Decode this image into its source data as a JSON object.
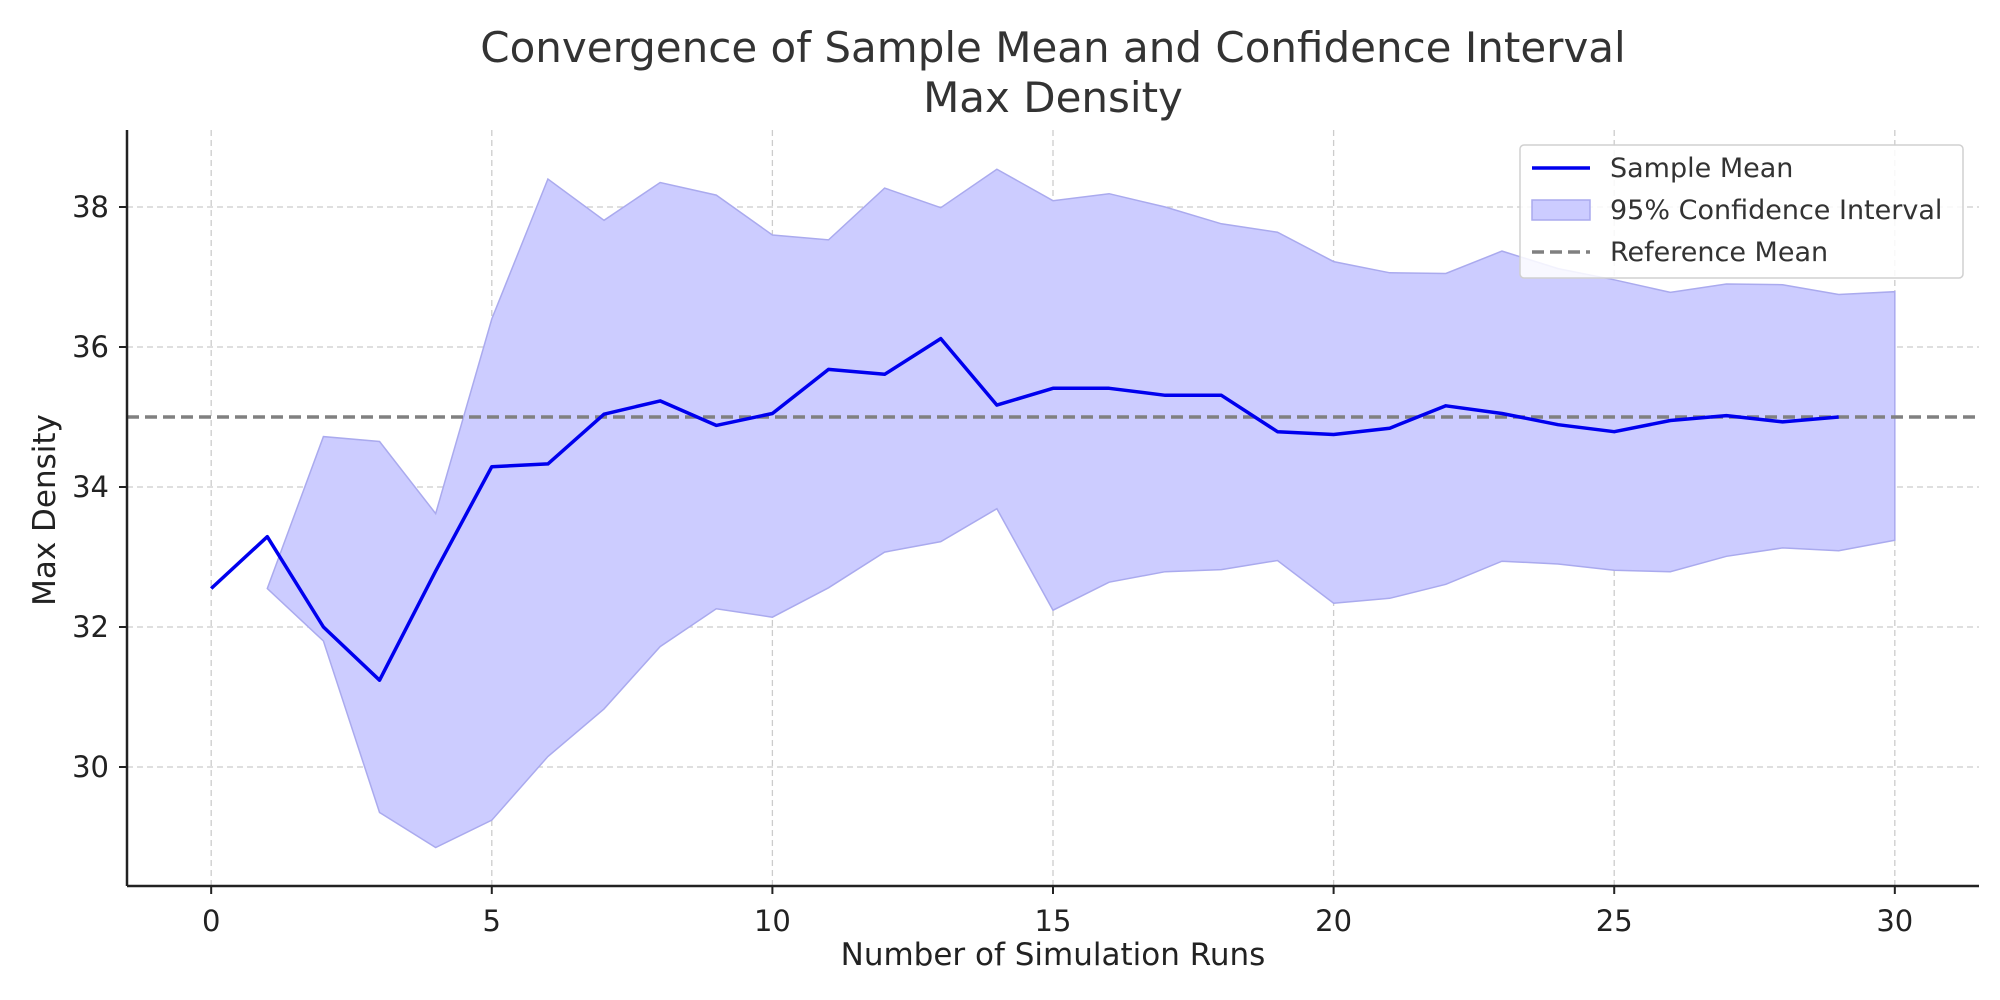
{
  "chart_data": {
    "type": "line",
    "title": "Convergence of Sample Mean and Confidence Interval",
    "subtitle": "Max Density",
    "xlabel": "Number of Simulation Runs",
    "ylabel": "Max Density",
    "xlim": [
      -1.5,
      31.5
    ],
    "ylim": [
      28.3,
      39.1
    ],
    "xticks": [
      0,
      5,
      10,
      15,
      20,
      25,
      30
    ],
    "yticks": [
      30,
      32,
      34,
      36,
      38
    ],
    "grid": true,
    "legend_position": "top-right",
    "colors": {
      "sample_mean": "#0000ee",
      "ci_fill": "#ccccff",
      "ci_edge": "#aaaaee",
      "reference": "#808080",
      "grid": "#cccccc",
      "axis": "#222222"
    },
    "legend": [
      {
        "key": "sample_mean",
        "label": "Sample Mean"
      },
      {
        "key": "ci",
        "label": "95% Confidence Interval"
      },
      {
        "key": "reference",
        "label": "Reference Mean"
      }
    ],
    "series": [
      {
        "name": "Sample Mean",
        "x": [
          0,
          1,
          2,
          3,
          4,
          5,
          6,
          7,
          8,
          9,
          10,
          11,
          12,
          13,
          14,
          15,
          16,
          17,
          18,
          19,
          20,
          21,
          22,
          23,
          24,
          25,
          26,
          27,
          28,
          29
        ],
        "y": [
          32.55,
          33.29,
          32.0,
          31.24,
          32.8,
          34.29,
          34.33,
          35.04,
          35.23,
          34.88,
          35.05,
          35.68,
          35.61,
          36.12,
          35.17,
          35.41,
          35.41,
          35.31,
          35.31,
          34.79,
          34.75,
          34.84,
          35.16,
          35.05,
          34.89,
          34.79,
          34.95,
          35.02,
          34.93,
          35.0
        ]
      },
      {
        "name": "95% Confidence Interval",
        "x": [
          1,
          2,
          3,
          4,
          5,
          6,
          7,
          8,
          9,
          10,
          11,
          12,
          13,
          14,
          15,
          16,
          17,
          18,
          19,
          20,
          21,
          22,
          23,
          24,
          25,
          26,
          27,
          28,
          29,
          30
        ],
        "lower": [
          32.55,
          31.8,
          29.35,
          28.85,
          29.24,
          30.15,
          30.83,
          31.72,
          32.26,
          32.14,
          32.56,
          33.07,
          33.22,
          33.69,
          32.24,
          32.64,
          32.79,
          32.82,
          32.95,
          32.34,
          32.41,
          32.61,
          32.94,
          32.9,
          32.81,
          32.79,
          33.01,
          33.13,
          33.09,
          33.24
        ],
        "upper": [
          32.55,
          34.72,
          34.65,
          33.62,
          36.4,
          38.4,
          37.81,
          38.35,
          38.17,
          37.6,
          37.53,
          38.27,
          37.99,
          38.54,
          38.09,
          38.19,
          38.0,
          37.76,
          37.64,
          37.22,
          37.06,
          37.05,
          37.37,
          37.12,
          36.96,
          36.78,
          36.9,
          36.89,
          36.75,
          36.79
        ]
      },
      {
        "name": "Reference Mean",
        "y": 35.0
      }
    ]
  }
}
